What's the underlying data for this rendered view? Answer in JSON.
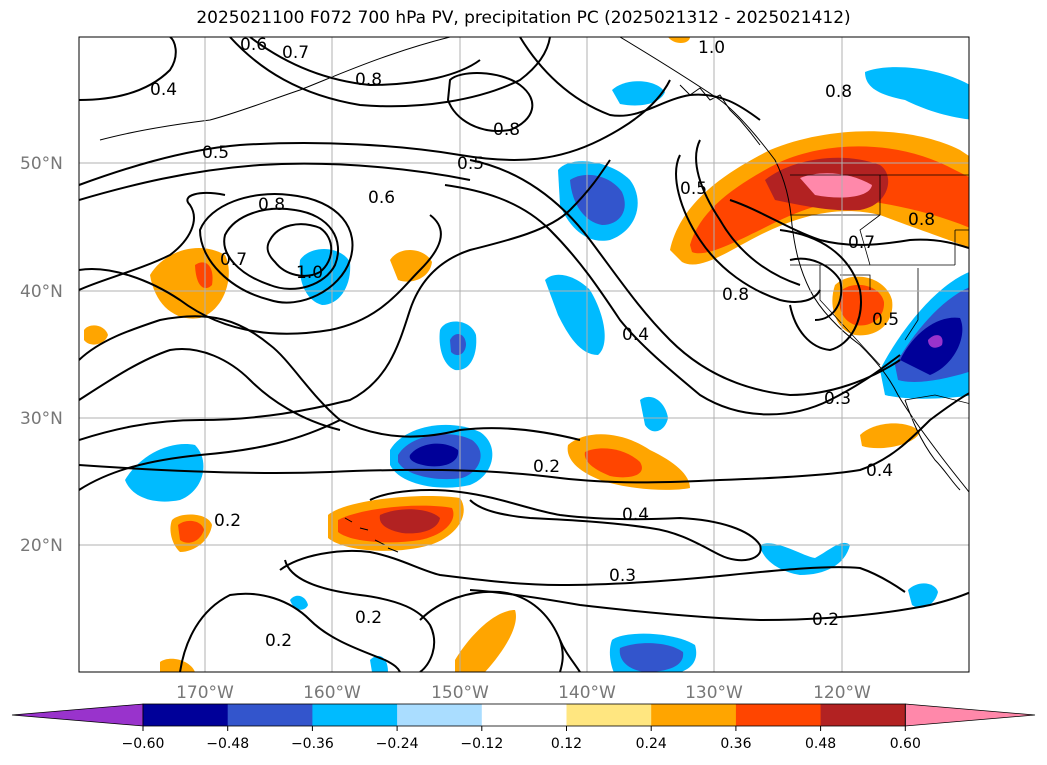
{
  "title": "2025021100 F072 700 hPa PV, precipitation PC (2025021312 - 2025021412)",
  "map": {
    "lat_labels": [
      "50°N",
      "40°N",
      "30°N",
      "20°N"
    ],
    "lon_labels": [
      "170°W",
      "160°W",
      "150°W",
      "140°W",
      "130°W",
      "120°W"
    ]
  },
  "contour_labels": [
    "0.4",
    "0.7",
    "0.8",
    "1.0",
    "0.8",
    "0.8",
    "0.5",
    "0.5",
    "0.6",
    "0.8",
    "0.5",
    "0.7",
    "1.0",
    "0.7",
    "0.8",
    "0.8",
    "0.4",
    "0.5",
    "0.3",
    "0.2",
    "0.4",
    "0.4",
    "0.2",
    "0.3",
    "0.2",
    "0.2",
    "0.2",
    "0.6"
  ],
  "colorbar": {
    "colors": [
      "#9933cc",
      "#000099",
      "#3355cc",
      "#00bbff",
      "#aaddff",
      "#ffffff",
      "#ffe680",
      "#ffa500",
      "#ff4500",
      "#b22222",
      "#ff88aa"
    ],
    "ticks": [
      "−0.60",
      "−0.48",
      "−0.36",
      "−0.24",
      "−0.12",
      "0.12",
      "0.24",
      "0.36",
      "0.48",
      "0.60"
    ]
  }
}
